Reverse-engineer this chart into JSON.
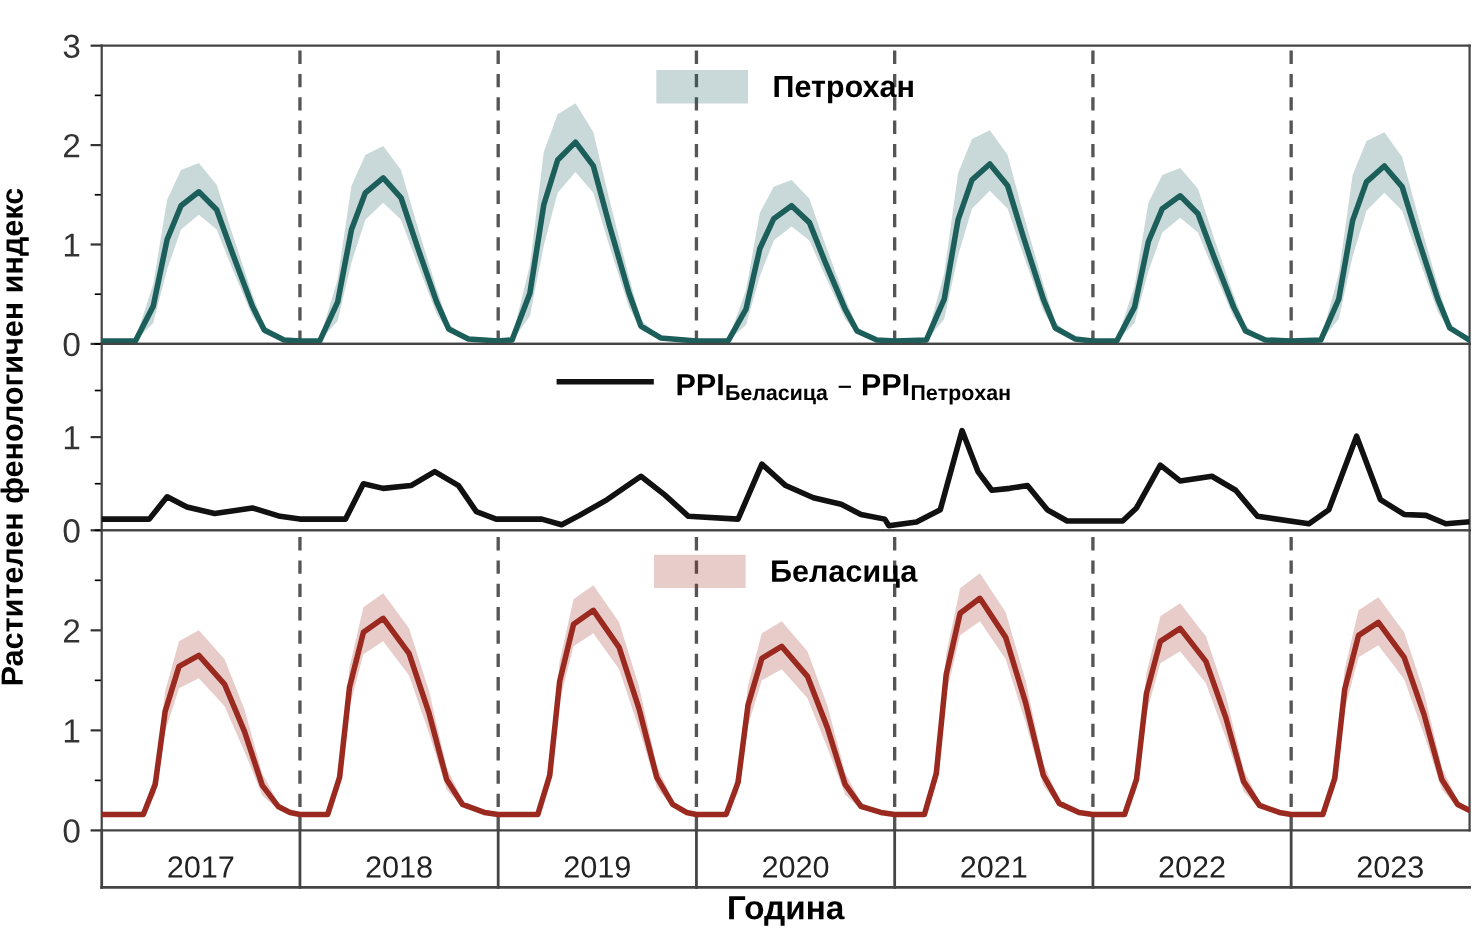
{
  "chart_data": [
    {
      "type": "line",
      "xlim": [
        2017,
        2023.9
      ],
      "ylim": [
        0,
        3
      ],
      "yticks": [
        0,
        1,
        2,
        3
      ],
      "tick_labels": "y",
      "legend": "top",
      "ref_lines": [
        {
          "axis": "x",
          "value": 2018,
          "color": "#555555",
          "line_style": "dashed"
        },
        {
          "axis": "x",
          "value": 2019,
          "color": "#555555",
          "line_style": "dashed"
        },
        {
          "axis": "x",
          "value": 2020,
          "color": "#555555",
          "line_style": "dashed"
        },
        {
          "axis": "x",
          "value": 2021,
          "color": "#555555",
          "line_style": "dashed"
        },
        {
          "axis": "x",
          "value": 2022,
          "color": "#555555",
          "line_style": "dashed"
        },
        {
          "axis": "x",
          "value": 2023,
          "color": "#555555",
          "line_style": "dashed"
        }
      ],
      "series": [
        {
          "name": "Петрохан",
          "color": "#1c5e5a",
          "x": [
            2017.0,
            2017.17,
            2017.26,
            2017.33,
            2017.4,
            2017.49,
            2017.58,
            2017.66,
            2017.76,
            2017.82,
            2017.92,
            2018.0,
            2018.1,
            2018.19,
            2018.26,
            2018.33,
            2018.42,
            2018.51,
            2018.59,
            2018.69,
            2018.75,
            2018.85,
            2019.0,
            2019.07,
            2019.16,
            2019.23,
            2019.3,
            2019.39,
            2019.48,
            2019.56,
            2019.66,
            2019.72,
            2019.82,
            2020.0,
            2020.16,
            2020.25,
            2020.32,
            2020.39,
            2020.48,
            2020.57,
            2020.65,
            2020.75,
            2020.81,
            2020.91,
            2021.0,
            2021.16,
            2021.25,
            2021.32,
            2021.39,
            2021.48,
            2021.57,
            2021.65,
            2021.75,
            2021.81,
            2021.91,
            2022.0,
            2022.12,
            2022.21,
            2022.28,
            2022.35,
            2022.44,
            2022.53,
            2022.61,
            2022.71,
            2022.77,
            2022.87,
            2023.0,
            2023.15,
            2023.24,
            2023.31,
            2023.38,
            2023.47,
            2023.56,
            2023.64,
            2023.74,
            2023.8,
            2023.89
          ],
          "values": [
            0.03,
            0.03,
            0.38,
            1.05,
            1.39,
            1.53,
            1.35,
            0.91,
            0.38,
            0.14,
            0.04,
            0.03,
            0.03,
            0.42,
            1.15,
            1.52,
            1.67,
            1.47,
            0.99,
            0.42,
            0.15,
            0.05,
            0.03,
            0.04,
            0.51,
            1.4,
            1.85,
            2.03,
            1.79,
            1.2,
            0.51,
            0.18,
            0.06,
            0.03,
            0.03,
            0.35,
            0.96,
            1.26,
            1.39,
            1.22,
            0.82,
            0.35,
            0.13,
            0.04,
            0.03,
            0.04,
            0.45,
            1.25,
            1.65,
            1.81,
            1.59,
            1.07,
            0.45,
            0.16,
            0.05,
            0.03,
            0.03,
            0.37,
            1.03,
            1.36,
            1.49,
            1.31,
            0.88,
            0.37,
            0.13,
            0.04,
            0.03,
            0.04,
            0.45,
            1.24,
            1.63,
            1.79,
            1.58,
            1.06,
            0.45,
            0.16,
            0.05
          ],
          "upper": [
            0.03,
            0.05,
            0.6,
            1.45,
            1.75,
            1.82,
            1.6,
            1.1,
            0.5,
            0.18,
            0.05,
            0.03,
            0.05,
            0.65,
            1.59,
            1.9,
            1.99,
            1.75,
            1.2,
            0.55,
            0.2,
            0.05,
            0.03,
            0.06,
            0.79,
            1.93,
            2.31,
            2.42,
            2.13,
            1.46,
            0.67,
            0.24,
            0.06,
            0.03,
            0.04,
            0.54,
            1.32,
            1.58,
            1.65,
            1.46,
            1.0,
            0.46,
            0.17,
            0.04,
            0.03,
            0.05,
            0.71,
            1.72,
            2.06,
            2.15,
            1.9,
            1.3,
            0.6,
            0.22,
            0.05,
            0.03,
            0.04,
            0.58,
            1.42,
            1.7,
            1.77,
            1.56,
            1.07,
            0.49,
            0.18,
            0.04,
            0.03,
            0.05,
            0.7,
            1.7,
            2.04,
            2.13,
            1.88,
            1.29,
            0.59,
            0.21,
            0.05
          ],
          "lower": [
            0.03,
            0.03,
            0.21,
            0.75,
            1.15,
            1.3,
            1.15,
            0.75,
            0.28,
            0.1,
            0.03,
            0.03,
            0.03,
            0.23,
            0.82,
            1.25,
            1.42,
            1.25,
            0.82,
            0.3,
            0.12,
            0.03,
            0.03,
            0.03,
            0.28,
            0.99,
            1.52,
            1.73,
            1.52,
            0.99,
            0.37,
            0.14,
            0.04,
            0.03,
            0.03,
            0.19,
            0.68,
            1.04,
            1.18,
            1.04,
            0.68,
            0.25,
            0.1,
            0.03,
            0.03,
            0.03,
            0.25,
            0.89,
            1.36,
            1.54,
            1.36,
            0.89,
            0.33,
            0.13,
            0.04,
            0.03,
            0.03,
            0.21,
            0.73,
            1.12,
            1.27,
            1.12,
            0.73,
            0.27,
            0.1,
            0.03,
            0.03,
            0.03,
            0.25,
            0.88,
            1.34,
            1.52,
            1.34,
            0.88,
            0.32,
            0.13,
            0.04
          ]
        }
      ]
    },
    {
      "type": "line",
      "xlim": [
        2017,
        2023.9
      ],
      "ylim": [
        0,
        2
      ],
      "yticks": [
        0,
        1
      ],
      "tick_labels": "y",
      "legend": "top",
      "ylabel": "Растителен фенологичен индекс",
      "series": [
        {
          "name": "PPI$_{Беласица}$ – PPI$_{Петрохан}$",
          "color": "#111111",
          "x": [
            2017.0,
            2017.24,
            2017.33,
            2017.43,
            2017.57,
            2017.76,
            2017.9,
            2018.0,
            2018.23,
            2018.32,
            2018.42,
            2018.56,
            2018.68,
            2018.8,
            2018.89,
            2018.99,
            2019.22,
            2019.32,
            2019.41,
            2019.55,
            2019.72,
            2019.84,
            2019.96,
            2020.21,
            2020.33,
            2020.45,
            2020.59,
            2020.73,
            2020.83,
            2020.95,
            2020.97,
            2021.11,
            2021.23,
            2021.34,
            2021.42,
            2021.49,
            2021.58,
            2021.67,
            2021.77,
            2021.87,
            2022.15,
            2022.22,
            2022.34,
            2022.44,
            2022.6,
            2022.72,
            2022.83,
            2023.09,
            2023.19,
            2023.33,
            2023.45,
            2023.57,
            2023.68,
            2023.78,
            2023.89
          ],
          "values": [
            0.12,
            0.12,
            0.36,
            0.25,
            0.18,
            0.24,
            0.15,
            0.12,
            0.12,
            0.5,
            0.45,
            0.48,
            0.63,
            0.48,
            0.2,
            0.12,
            0.12,
            0.06,
            0.16,
            0.33,
            0.58,
            0.38,
            0.15,
            0.12,
            0.71,
            0.48,
            0.35,
            0.28,
            0.17,
            0.12,
            0.05,
            0.09,
            0.22,
            1.07,
            0.63,
            0.43,
            0.45,
            0.48,
            0.22,
            0.1,
            0.1,
            0.24,
            0.7,
            0.53,
            0.58,
            0.43,
            0.15,
            0.07,
            0.22,
            1.01,
            0.33,
            0.17,
            0.16,
            0.07,
            0.09
          ]
        }
      ]
    },
    {
      "type": "line",
      "xlim": [
        2017,
        2023.9
      ],
      "ylim": [
        0,
        3
      ],
      "yticks": [
        0,
        1,
        2
      ],
      "legend": "top",
      "xlabel": "Година",
      "xticks": [
        {
          "value": 2017,
          "label": null
        },
        {
          "value": 2017.5,
          "label": "2017"
        },
        {
          "value": 2018,
          "label": null
        },
        {
          "value": 2018.5,
          "label": "2018"
        },
        {
          "value": 2019,
          "label": null
        },
        {
          "value": 2019.5,
          "label": "2019"
        },
        {
          "value": 2020,
          "label": null
        },
        {
          "value": 2020.5,
          "label": "2020"
        },
        {
          "value": 2021,
          "label": null
        },
        {
          "value": 2021.5,
          "label": "2021"
        },
        {
          "value": 2022,
          "label": null
        },
        {
          "value": 2022.5,
          "label": "2022"
        },
        {
          "value": 2023,
          "label": null
        },
        {
          "value": 2023.5,
          "label": "2023"
        }
      ],
      "ref_lines": [
        {
          "axis": "x",
          "value": 2018,
          "color": "#555555",
          "line_style": "dashed"
        },
        {
          "axis": "x",
          "value": 2019,
          "color": "#555555",
          "line_style": "dashed"
        },
        {
          "axis": "x",
          "value": 2020,
          "color": "#555555",
          "line_style": "dashed"
        },
        {
          "axis": "x",
          "value": 2021,
          "color": "#555555",
          "line_style": "dashed"
        },
        {
          "axis": "x",
          "value": 2022,
          "color": "#555555",
          "line_style": "dashed"
        },
        {
          "axis": "x",
          "value": 2023,
          "color": "#555555",
          "line_style": "dashed"
        }
      ],
      "series": [
        {
          "name": "Беласица",
          "color": "#9a2a20",
          "x": [
            2017.0,
            2017.21,
            2017.27,
            2017.32,
            2017.39,
            2017.49,
            2017.62,
            2017.72,
            2017.81,
            2017.89,
            2017.95,
            2018.0,
            2018.14,
            2018.2,
            2018.25,
            2018.32,
            2018.42,
            2018.55,
            2018.65,
            2018.74,
            2018.82,
            2018.93,
            2019.0,
            2019.2,
            2019.26,
            2019.31,
            2019.38,
            2019.48,
            2019.61,
            2019.71,
            2019.8,
            2019.88,
            2019.95,
            2020.0,
            2020.15,
            2020.21,
            2020.26,
            2020.33,
            2020.43,
            2020.56,
            2020.66,
            2020.75,
            2020.83,
            2020.93,
            2021.0,
            2021.15,
            2021.21,
            2021.26,
            2021.33,
            2021.43,
            2021.56,
            2021.66,
            2021.75,
            2021.83,
            2021.93,
            2022.0,
            2022.16,
            2022.22,
            2022.27,
            2022.34,
            2022.44,
            2022.57,
            2022.67,
            2022.76,
            2022.84,
            2022.94,
            2023.0,
            2023.16,
            2023.22,
            2023.27,
            2023.34,
            2023.44,
            2023.57,
            2023.67,
            2023.76,
            2023.84,
            2023.9
          ],
          "values": [
            0.16,
            0.16,
            0.46,
            1.19,
            1.64,
            1.75,
            1.46,
            0.99,
            0.45,
            0.24,
            0.18,
            0.16,
            0.16,
            0.53,
            1.43,
            1.98,
            2.12,
            1.77,
            1.18,
            0.51,
            0.26,
            0.18,
            0.16,
            0.16,
            0.55,
            1.49,
            2.06,
            2.2,
            1.83,
            1.22,
            0.53,
            0.26,
            0.18,
            0.16,
            0.16,
            0.48,
            1.25,
            1.72,
            1.84,
            1.54,
            1.03,
            0.46,
            0.24,
            0.18,
            0.16,
            0.16,
            0.57,
            1.56,
            2.17,
            2.32,
            1.93,
            1.28,
            0.55,
            0.27,
            0.18,
            0.16,
            0.16,
            0.51,
            1.37,
            1.89,
            2.02,
            1.69,
            1.13,
            0.49,
            0.25,
            0.18,
            0.16,
            0.16,
            0.52,
            1.41,
            1.95,
            2.08,
            1.73,
            1.16,
            0.51,
            0.26,
            0.2
          ],
          "upper": [
            0.16,
            0.17,
            0.58,
            1.39,
            1.89,
            2.0,
            1.71,
            1.21,
            0.57,
            0.28,
            0.19,
            0.16,
            0.17,
            0.65,
            1.63,
            2.23,
            2.37,
            2.02,
            1.4,
            0.63,
            0.3,
            0.19,
            0.16,
            0.17,
            0.67,
            1.69,
            2.31,
            2.45,
            2.08,
            1.44,
            0.65,
            0.3,
            0.19,
            0.16,
            0.17,
            0.6,
            1.45,
            1.97,
            2.09,
            1.79,
            1.25,
            0.58,
            0.28,
            0.19,
            0.16,
            0.17,
            0.69,
            1.76,
            2.42,
            2.57,
            2.18,
            1.5,
            0.67,
            0.31,
            0.19,
            0.16,
            0.17,
            0.63,
            1.57,
            2.14,
            2.27,
            1.94,
            1.35,
            0.61,
            0.29,
            0.19,
            0.16,
            0.17,
            0.64,
            1.61,
            2.2,
            2.33,
            1.98,
            1.38,
            0.63,
            0.3,
            0.21
          ],
          "lower": [
            0.16,
            0.16,
            0.36,
            0.99,
            1.42,
            1.52,
            1.24,
            0.79,
            0.35,
            0.21,
            0.17,
            0.16,
            0.16,
            0.43,
            1.23,
            1.76,
            1.89,
            1.55,
            0.98,
            0.41,
            0.23,
            0.17,
            0.16,
            0.16,
            0.45,
            1.29,
            1.84,
            1.97,
            1.61,
            1.02,
            0.43,
            0.23,
            0.17,
            0.16,
            0.16,
            0.38,
            1.05,
            1.5,
            1.61,
            1.32,
            0.83,
            0.36,
            0.21,
            0.17,
            0.16,
            0.16,
            0.47,
            1.36,
            1.95,
            2.09,
            1.71,
            1.08,
            0.45,
            0.24,
            0.17,
            0.16,
            0.16,
            0.41,
            1.17,
            1.67,
            1.79,
            1.47,
            0.93,
            0.39,
            0.22,
            0.17,
            0.16,
            0.16,
            0.42,
            1.21,
            1.73,
            1.85,
            1.51,
            0.96,
            0.41,
            0.23,
            0.19
          ]
        }
      ]
    }
  ]
}
